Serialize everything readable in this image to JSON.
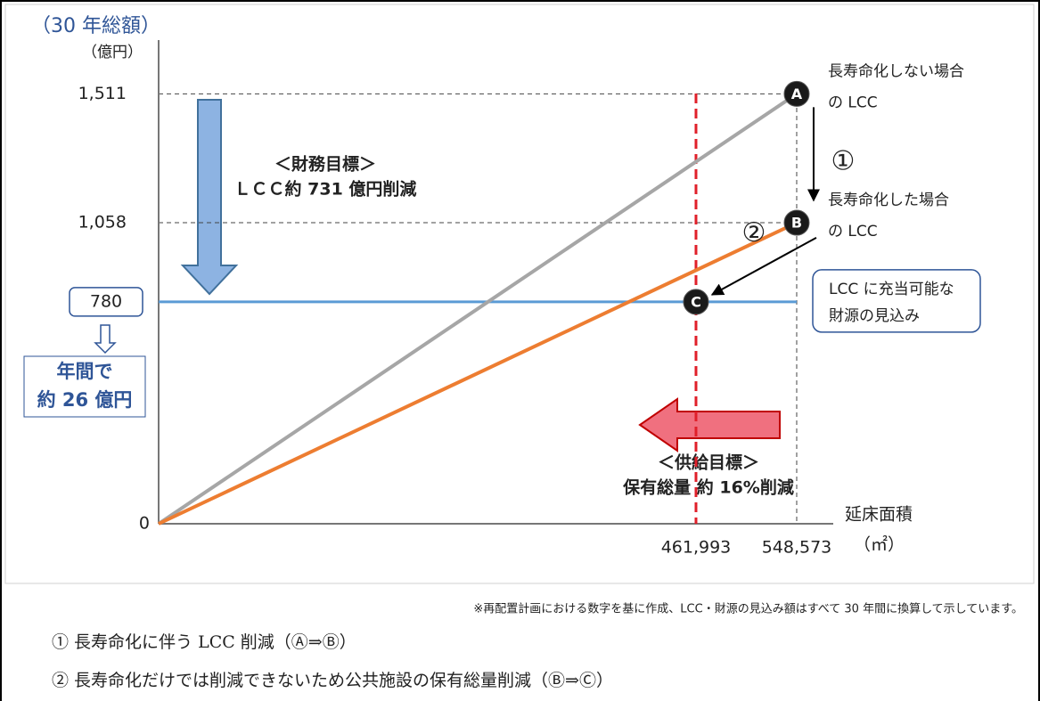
{
  "chart_data": {
    "type": "line",
    "title": "（30 年総額）",
    "y_unit": "（億円）",
    "x_label": "延床面積",
    "x_unit": "（㎡）",
    "x": [
      0,
      548573
    ],
    "series": [
      {
        "name": "A",
        "color": "#a6a6a6",
        "values": [
          0,
          1511
        ],
        "label": [
          "長寿命化しない場合",
          "の LCC"
        ]
      },
      {
        "name": "B",
        "color": "#ed7d31",
        "values": [
          0,
          1058
        ],
        "label": [
          "長寿命化した場合",
          "の LCC"
        ]
      }
    ],
    "xlim": [
      0,
      580000
    ],
    "ylim": [
      0,
      1700
    ],
    "xticks": [
      {
        "value": 461993,
        "label": "461,993"
      },
      {
        "value": 548573,
        "label": "548,573"
      }
    ],
    "yticks": [
      0,
      {
        "value": 1058,
        "label": "1,058"
      },
      {
        "value": 1511,
        "label": "1,511"
      }
    ],
    "budget_line": {
      "value": 780,
      "label": "780",
      "color": "#5b9bd5",
      "note": [
        "LCC に充当可能な",
        "財源の見込み"
      ]
    },
    "supply_line": {
      "value": 461993,
      "color": "#e0202a"
    },
    "points": [
      {
        "name": "C",
        "x": 461993,
        "y": 780
      }
    ],
    "annotations": {
      "finance": [
        "＜財務目標＞",
        "ＬＣＣ約 731 億円削減"
      ],
      "supply": [
        "＜供給目標＞",
        "保有総量 約 16%削減"
      ],
      "annual": [
        "年間で",
        "約 26 億円"
      ],
      "step1": "①",
      "step2": "②"
    },
    "footnote": "※再配置計画における数字を基に作成、LCC・財源の見込み額はすべて 30 年間に換算して示しています。",
    "notes": [
      "① 長寿命化に伴う LCC 削減（Ⓐ⇒Ⓑ）",
      "② 長寿命化だけでは削減できないため公共施設の保有総量削減（Ⓑ⇒Ⓒ）"
    ]
  }
}
